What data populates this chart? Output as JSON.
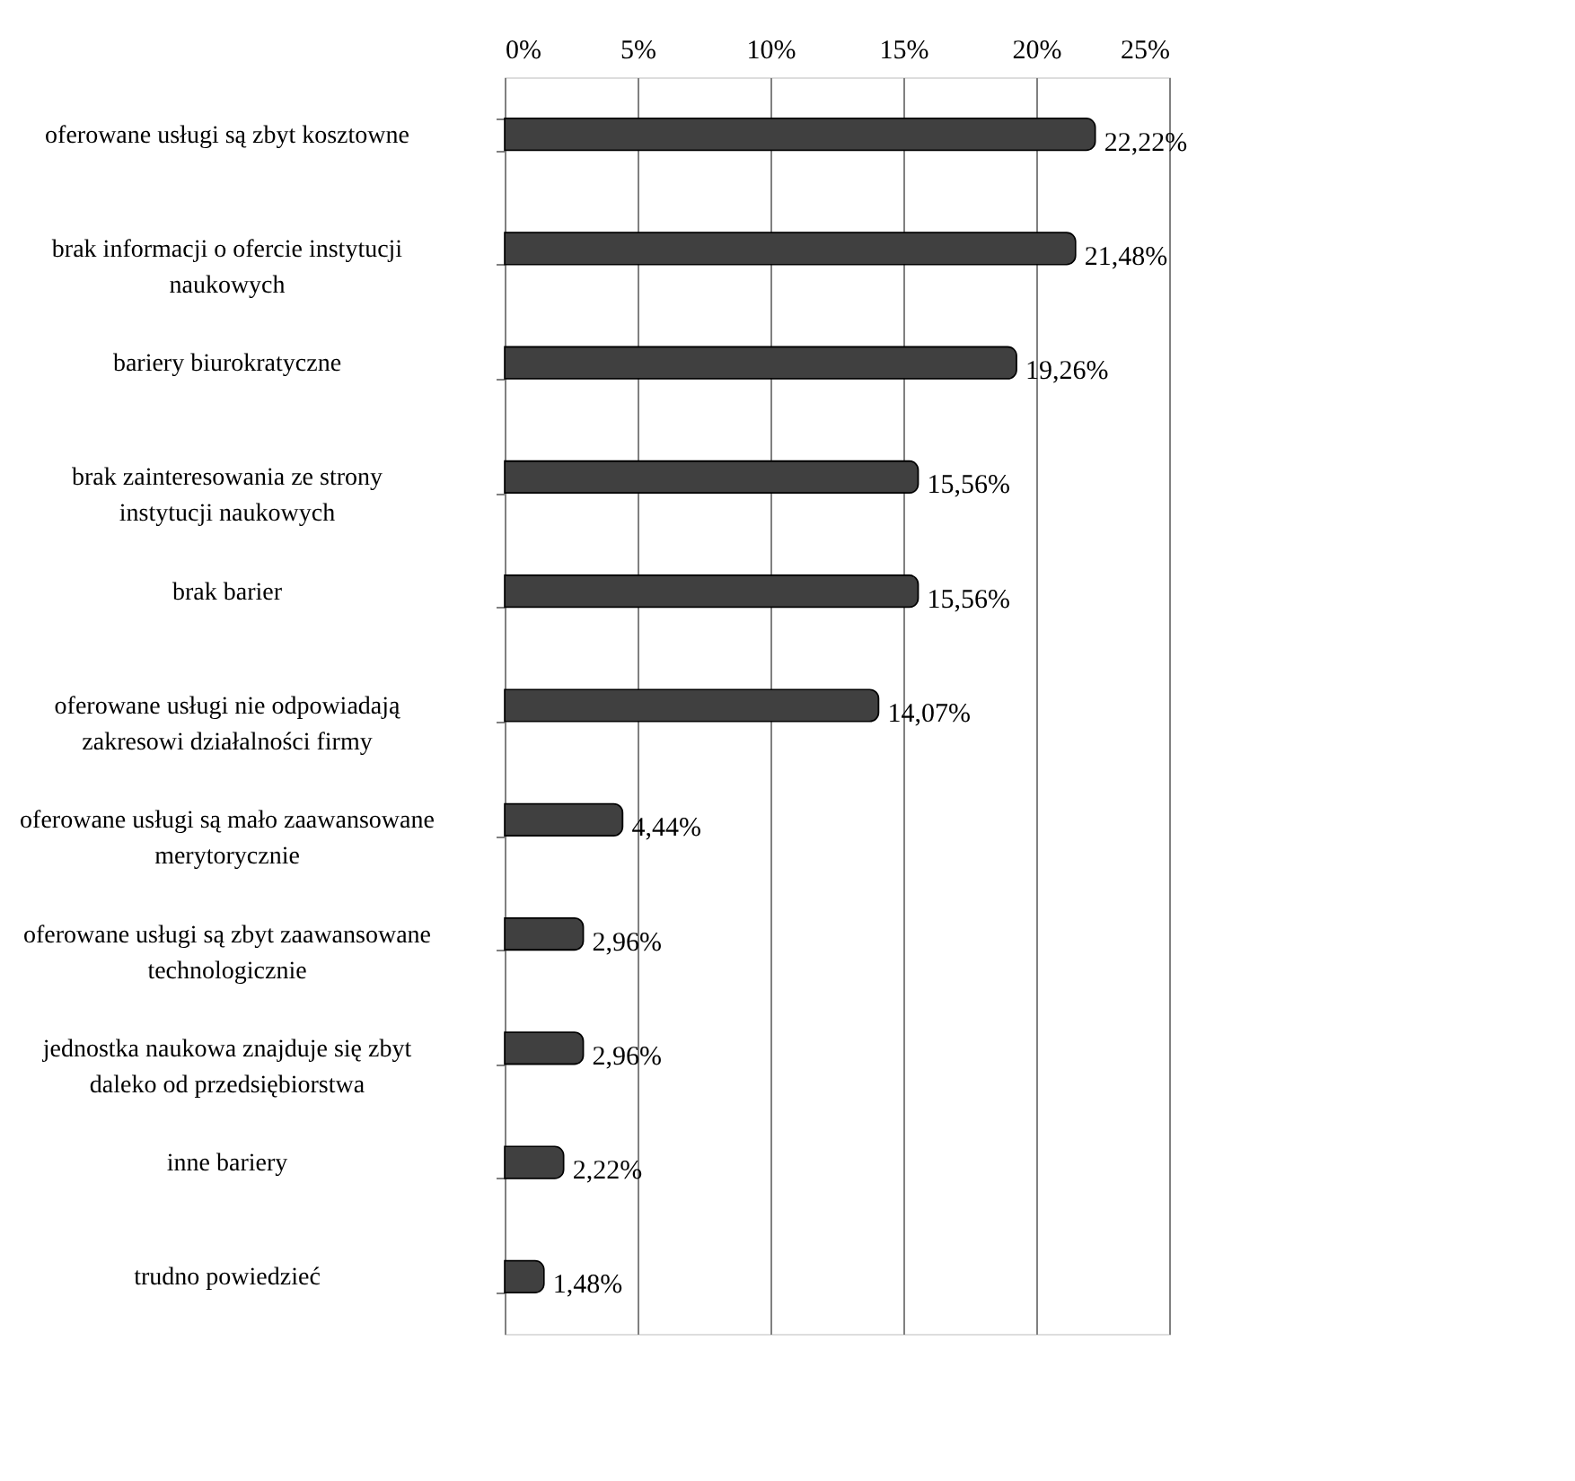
{
  "chart_data": {
    "type": "bar",
    "orientation": "horizontal",
    "categories": [
      "oferowane usługi są zbyt kosztowne",
      "brak informacji o ofercie instytucji naukowych",
      "bariery biurokratyczne",
      "brak zainteresowania ze strony instytucji naukowych",
      "brak barier",
      "oferowane usługi nie odpowiadają zakresowi działalności firmy",
      "oferowane usługi są mało zaawansowane merytorycznie",
      "oferowane usługi są zbyt zaawansowane technologicznie",
      "jednostka naukowa znajduje się zbyt daleko od przedsiębiorstwa",
      "inne bariery",
      "trudno powiedzieć"
    ],
    "values": [
      22.22,
      21.48,
      19.26,
      15.56,
      15.56,
      14.07,
      4.44,
      2.96,
      2.96,
      2.22,
      1.48
    ],
    "value_labels": [
      "22,22%",
      "21,48%",
      "19,26%",
      "15,56%",
      "15,56%",
      "14,07%",
      "4,44%",
      "2,96%",
      "2,96%",
      "2,22%",
      "1,48%"
    ],
    "color": "#404040",
    "xlim": [
      0,
      25
    ],
    "xticks": [
      {
        "value": 0,
        "label": "0%"
      },
      {
        "value": 5,
        "label": "5%"
      },
      {
        "value": 10,
        "label": "10%"
      },
      {
        "value": 15,
        "label": "15%"
      },
      {
        "value": 20,
        "label": "20%"
      },
      {
        "value": 25,
        "label": "25%"
      }
    ],
    "grid": "x"
  }
}
